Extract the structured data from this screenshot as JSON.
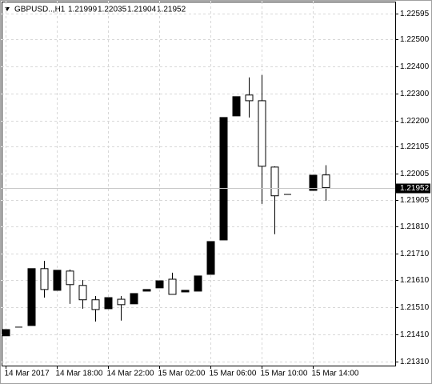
{
  "chart_data": {
    "type": "candlestick",
    "title": "GBPUSD..,H1",
    "categories": [
      "14 Mar 2017",
      null,
      null,
      null,
      "14 Mar 18:00",
      null,
      null,
      null,
      "14 Mar 22:00",
      null,
      null,
      null,
      "15 Mar 02:00",
      null,
      null,
      null,
      "15 Mar 06:00",
      null,
      null,
      null,
      "15 Mar 10:00",
      null,
      null,
      null,
      "15 Mar 14:00",
      null
    ],
    "open": [
      1.21405,
      1.21437,
      1.21443,
      1.21653,
      1.21573,
      1.21644,
      1.21591,
      1.21538,
      1.21505,
      1.2154,
      1.21523,
      1.2157,
      1.21582,
      1.21614,
      1.21567,
      1.2157,
      1.21632,
      1.21759,
      1.22217,
      1.22294,
      1.22273,
      1.22028,
      1.21927,
      null,
      1.21942,
      1.21999
    ],
    "high": [
      1.21428,
      1.21437,
      1.21653,
      1.21682,
      1.21647,
      1.2165,
      1.21611,
      1.21552,
      1.21546,
      1.21552,
      1.21561,
      1.21576,
      1.21608,
      1.21638,
      1.21573,
      1.21626,
      1.21753,
      1.22211,
      1.22288,
      1.22359,
      1.22368,
      1.22031,
      1.21927,
      null,
      1.21998,
      1.22035
    ],
    "low": [
      1.21405,
      1.21437,
      1.21443,
      1.21546,
      1.21573,
      1.21523,
      1.21505,
      1.21458,
      1.21505,
      1.21461,
      1.21523,
      1.2157,
      1.21582,
      1.21558,
      1.21567,
      1.2157,
      1.21632,
      1.21759,
      1.22217,
      1.22211,
      1.21892,
      1.2178,
      1.21927,
      null,
      1.21942,
      1.21904
    ],
    "close": [
      1.21428,
      1.21437,
      1.21653,
      1.21576,
      1.21647,
      1.21594,
      1.21538,
      1.21502,
      1.21546,
      1.2152,
      1.21561,
      1.21576,
      1.21608,
      1.21558,
      1.21573,
      1.21626,
      1.21753,
      1.22211,
      1.22288,
      1.22273,
      1.22031,
      1.21922,
      1.21927,
      null,
      1.21998,
      1.21952
    ],
    "up_color": "#000000",
    "down_color": "#ffffff",
    "ylim": [
      1.21295,
      1.22639
    ],
    "yticks": [
      1.22595,
      {
        "value": 1.225,
        "label": "1.22500"
      },
      {
        "value": 1.224,
        "label": "1.22400"
      },
      {
        "value": 1.223,
        "label": "1.22300"
      },
      {
        "value": 1.222,
        "label": "1.22200"
      },
      1.22105,
      1.22005,
      1.21905,
      {
        "value": 1.2181,
        "label": "1.21810"
      },
      {
        "value": 1.2171,
        "label": "1.21710"
      },
      {
        "value": 1.2161,
        "label": "1.21610"
      },
      {
        "value": 1.2151,
        "label": "1.21510"
      },
      {
        "value": 1.2141,
        "label": "1.21410"
      },
      {
        "value": 1.2131,
        "label": "1.21310"
      }
    ],
    "grid": true
  }
}
